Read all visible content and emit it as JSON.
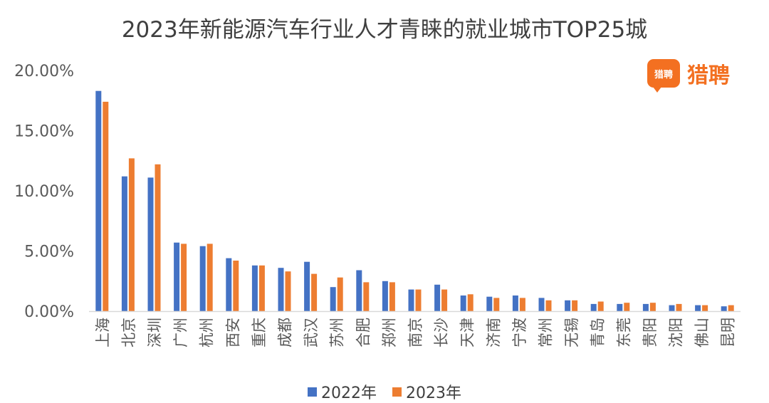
{
  "chart_data": {
    "type": "bar",
    "title": "2023年新能源汽车行业人才青睐的就业城市TOP25城",
    "categories": [
      "上海",
      "北京",
      "深圳",
      "广州",
      "杭州",
      "西安",
      "重庆",
      "成都",
      "武汉",
      "苏州",
      "合肥",
      "郑州",
      "南京",
      "长沙",
      "天津",
      "济南",
      "宁波",
      "常州",
      "无锡",
      "青岛",
      "东莞",
      "贵阳",
      "沈阳",
      "佛山",
      "昆明"
    ],
    "series": [
      {
        "name": "2022年",
        "color": "#4472c4",
        "values": [
          18.3,
          11.2,
          11.1,
          5.7,
          5.4,
          4.4,
          3.8,
          3.6,
          4.1,
          2.0,
          3.4,
          2.5,
          1.8,
          2.2,
          1.3,
          1.2,
          1.3,
          1.1,
          0.9,
          0.6,
          0.6,
          0.6,
          0.5,
          0.5,
          0.4
        ]
      },
      {
        "name": "2023年",
        "color": "#ed7d31",
        "values": [
          17.4,
          12.7,
          12.2,
          5.6,
          5.6,
          4.2,
          3.8,
          3.3,
          3.1,
          2.8,
          2.4,
          2.4,
          1.8,
          1.8,
          1.4,
          1.1,
          1.1,
          0.9,
          0.9,
          0.8,
          0.7,
          0.7,
          0.6,
          0.5,
          0.5
        ]
      }
    ],
    "yticks": [
      "0.00%",
      "5.00%",
      "10.00%",
      "15.00%",
      "20.00%"
    ],
    "ylim": [
      0,
      20
    ],
    "grid": false,
    "legend": "bottom"
  },
  "brand": {
    "badge_text": "猎聘",
    "name": "猎聘"
  }
}
